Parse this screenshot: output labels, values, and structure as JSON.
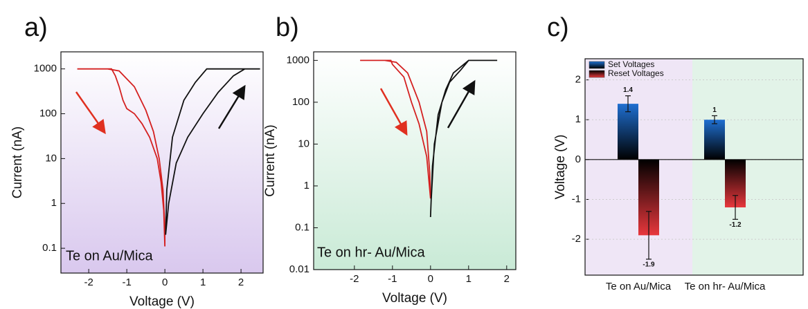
{
  "chart_data": [
    {
      "type": "line",
      "panel_label": "a)",
      "annotation": "Te on Au/Mica",
      "x_label": "Voltage (V)",
      "y_label": "Current (nA)",
      "log_y": true,
      "xlim": [
        -2.73,
        2.58
      ],
      "ylim": [
        0.028,
        2400
      ],
      "xticks": [
        -2,
        -1,
        0,
        1,
        2
      ],
      "yticks": [
        0.1,
        1,
        10,
        100,
        1000
      ],
      "series": [
        {
          "color": "#d42020",
          "x": [
            -2.3,
            -1.4,
            -1.3,
            -1.2,
            -1.1,
            -1.0,
            -0.8,
            -0.6,
            -0.4,
            -0.2,
            -0.1,
            -0.03,
            0,
            0,
            -0.05,
            -0.15,
            -0.3,
            -0.5,
            -0.8,
            -1.2,
            -1.5,
            -2.3
          ],
          "values": [
            1000,
            1000,
            700,
            400,
            200,
            130,
            100,
            60,
            30,
            10,
            3,
            0.7,
            0.11,
            0.3,
            2,
            10,
            40,
            120,
            400,
            900,
            1000,
            1000
          ]
        },
        {
          "color": "#111111",
          "x": [
            0.02,
            0.05,
            0.2,
            0.5,
            0.8,
            1.1,
            2.5,
            2.1,
            1.8,
            1.4,
            1.0,
            0.6,
            0.3,
            0.1,
            0.02
          ],
          "values": [
            0.2,
            2,
            30,
            200,
            500,
            1000,
            1000,
            1000,
            700,
            300,
            100,
            30,
            8,
            1,
            0.2
          ]
        }
      ]
    },
    {
      "type": "line",
      "panel_label": "b)",
      "annotation": "Te on hr- Au/Mica",
      "x_label": "Voltage (V)",
      "y_label": "Current (nA)",
      "log_y": true,
      "xlim": [
        -3.07,
        2.24
      ],
      "ylim": [
        0.01,
        1600
      ],
      "xticks": [
        -2,
        -1,
        0,
        1,
        2
      ],
      "yticks": [
        0.01,
        0.1,
        1,
        10,
        100,
        1000
      ],
      "series": [
        {
          "color": "#d42020",
          "x": [
            -1.85,
            -1.04,
            -1.0,
            -0.7,
            -0.5,
            -0.3,
            -0.1,
            0,
            -0.02,
            -0.1,
            -0.3,
            -0.6,
            -0.9,
            -1.2,
            -1.85
          ],
          "values": [
            1000,
            1000,
            800,
            400,
            100,
            30,
            5,
            0.5,
            2,
            20,
            100,
            500,
            900,
            1000,
            1000
          ]
        },
        {
          "color": "#111111",
          "x": [
            0,
            0.05,
            0.2,
            0.4,
            0.6,
            1.0,
            1.75,
            1.0,
            0.8,
            0.5,
            0.3,
            0.1,
            0.02
          ],
          "values": [
            0.18,
            3,
            50,
            200,
            500,
            1000,
            1000,
            1000,
            600,
            300,
            100,
            10,
            0.5
          ]
        }
      ]
    },
    {
      "type": "bar",
      "panel_label": "c)",
      "y_label": "Voltage (V)",
      "categories": [
        "Te on Au/Mica",
        "Te on hr- Au/Mica"
      ],
      "ylim": [
        -2.9,
        2.53
      ],
      "yticks": [
        -2,
        -1,
        0,
        1,
        2
      ],
      "grid": true,
      "legend": "upper left",
      "series": [
        {
          "name": "Set Voltages",
          "color": "#1f6fd1",
          "values": [
            1.4,
            1
          ],
          "errors": [
            0.2,
            0.1
          ]
        },
        {
          "name": "Reset Voltages",
          "color": "#e8373c",
          "values": [
            -1.9,
            -1.2
          ],
          "errors": [
            0.6,
            0.3
          ]
        }
      ]
    }
  ]
}
